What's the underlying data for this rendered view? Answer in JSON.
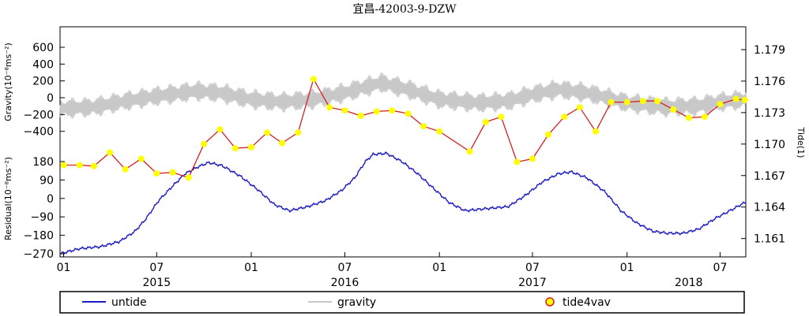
{
  "chart_data": {
    "type": "line",
    "title": "宜昌-42003-9-DZW",
    "x_range": [
      "2014-12-25",
      "2018-08-20"
    ],
    "x_tick_labels": [
      {
        "date": "2015-01-01",
        "label": "01"
      },
      {
        "date": "2015-07-01",
        "label": "07"
      },
      {
        "date": "2016-01-01",
        "label": "01"
      },
      {
        "date": "2016-07-01",
        "label": "07"
      },
      {
        "date": "2017-01-01",
        "label": "01"
      },
      {
        "date": "2017-07-01",
        "label": "07"
      },
      {
        "date": "2018-01-01",
        "label": "01"
      },
      {
        "date": "2018-07-01",
        "label": "07"
      }
    ],
    "year_labels": [
      {
        "date": "2015-07-01",
        "label": "2015"
      },
      {
        "date": "2016-07-01",
        "label": "2016"
      },
      {
        "date": "2017-07-01",
        "label": "2017"
      },
      {
        "date": "2018-05-01",
        "label": "2018"
      }
    ],
    "gravity_axis": {
      "label": "Gravity(10⁻⁸ms⁻²)",
      "ticks": [
        "600",
        "400",
        "200",
        "0",
        "−200",
        "−400"
      ],
      "tick_values": [
        600,
        400,
        200,
        0,
        -200,
        -400
      ],
      "ylim": [
        -450,
        750
      ]
    },
    "residual_axis": {
      "label": "Residual(10⁻⁸ms⁻²)",
      "ticks": [
        "180",
        "90",
        "0",
        "−90",
        "−180",
        "−270"
      ],
      "tick_values": [
        180,
        90,
        0,
        -90,
        -180,
        -270
      ],
      "ylim": [
        -270,
        230
      ]
    },
    "tide_axis": {
      "label": "Tide(1)",
      "ticks": [
        "1.179",
        "1.176",
        "1.173",
        "1.170",
        "1.167",
        "1.164",
        "1.161"
      ],
      "tick_values": [
        1.179,
        1.176,
        1.173,
        1.17,
        1.167,
        1.164,
        1.161
      ],
      "ylim": [
        1.1603,
        1.1802
      ]
    },
    "series": [
      {
        "name": "untide",
        "axis": "residual",
        "color": "#1c1cc4",
        "points": [
          [
            "2014-12-25",
            -270
          ],
          [
            "2015-02-01",
            -245
          ],
          [
            "2015-03-15",
            -235
          ],
          [
            "2015-04-20",
            -210
          ],
          [
            "2015-05-20",
            -160
          ],
          [
            "2015-06-10",
            -100
          ],
          [
            "2015-07-05",
            -10
          ],
          [
            "2015-08-01",
            60
          ],
          [
            "2015-08-25",
            120
          ],
          [
            "2015-09-20",
            155
          ],
          [
            "2015-10-10",
            175
          ],
          [
            "2015-11-05",
            160
          ],
          [
            "2015-12-10",
            110
          ],
          [
            "2016-01-15",
            40
          ],
          [
            "2016-02-15",
            -30
          ],
          [
            "2016-03-15",
            -60
          ],
          [
            "2016-04-20",
            -40
          ],
          [
            "2016-05-25",
            -10
          ],
          [
            "2016-06-25",
            40
          ],
          [
            "2016-07-20",
            100
          ],
          [
            "2016-08-10",
            180
          ],
          [
            "2016-08-25",
            215
          ],
          [
            "2016-09-20",
            220
          ],
          [
            "2016-10-20",
            180
          ],
          [
            "2016-11-20",
            120
          ],
          [
            "2016-12-20",
            50
          ],
          [
            "2017-01-20",
            -20
          ],
          [
            "2017-02-20",
            -60
          ],
          [
            "2017-04-01",
            -50
          ],
          [
            "2017-05-15",
            -40
          ],
          [
            "2017-06-20",
            20
          ],
          [
            "2017-07-20",
            80
          ],
          [
            "2017-08-20",
            120
          ],
          [
            "2017-09-15",
            130
          ],
          [
            "2017-10-15",
            100
          ],
          [
            "2017-11-20",
            30
          ],
          [
            "2017-12-20",
            -60
          ],
          [
            "2018-01-20",
            -120
          ],
          [
            "2018-02-20",
            -160
          ],
          [
            "2018-03-20",
            -170
          ],
          [
            "2018-04-20",
            -170
          ],
          [
            "2018-05-20",
            -150
          ],
          [
            "2018-06-20",
            -100
          ],
          [
            "2018-07-20",
            -60
          ],
          [
            "2018-08-18",
            -20
          ]
        ]
      },
      {
        "name": "gravity",
        "axis": "gravity",
        "color": "#c8c8c8",
        "period_days": 14.8,
        "amplitude": 130,
        "baseline": [
          [
            "2014-12-25",
            -130
          ],
          [
            "2015-03-01",
            -110
          ],
          [
            "2015-05-01",
            -40
          ],
          [
            "2015-07-01",
            20
          ],
          [
            "2015-09-15",
            80
          ],
          [
            "2015-11-01",
            60
          ],
          [
            "2016-01-01",
            -20
          ],
          [
            "2016-03-01",
            -50
          ],
          [
            "2016-05-01",
            -20
          ],
          [
            "2016-07-01",
            60
          ],
          [
            "2016-09-10",
            180
          ],
          [
            "2016-11-01",
            100
          ],
          [
            "2017-01-01",
            -20
          ],
          [
            "2017-03-15",
            -60
          ],
          [
            "2017-05-15",
            -40
          ],
          [
            "2017-07-01",
            40
          ],
          [
            "2017-08-20",
            100
          ],
          [
            "2017-10-15",
            60
          ],
          [
            "2018-01-01",
            -60
          ],
          [
            "2018-03-15",
            -110
          ],
          [
            "2018-05-15",
            -100
          ],
          [
            "2018-07-01",
            -50
          ],
          [
            "2018-08-20",
            -20
          ]
        ]
      },
      {
        "name": "tide4vav",
        "axis": "tide",
        "color": "#d42020",
        "marker_fill": "#ffff00",
        "points": [
          [
            "2015-01-01",
            1.168
          ],
          [
            "2015-02-01",
            1.168
          ],
          [
            "2015-03-01",
            1.1679
          ],
          [
            "2015-04-01",
            1.1692
          ],
          [
            "2015-05-01",
            1.1676
          ],
          [
            "2015-06-01",
            1.1686
          ],
          [
            "2015-07-01",
            1.1672
          ],
          [
            "2015-08-01",
            1.1673
          ],
          [
            "2015-09-01",
            1.1668
          ],
          [
            "2015-10-01",
            1.17
          ],
          [
            "2015-11-01",
            1.1714
          ],
          [
            "2015-12-01",
            1.1696
          ],
          [
            "2016-01-01",
            1.1697
          ],
          [
            "2016-02-01",
            1.1711
          ],
          [
            "2016-03-01",
            1.1701
          ],
          [
            "2016-04-01",
            1.1711
          ],
          [
            "2016-05-01",
            1.1762
          ],
          [
            "2016-06-01",
            1.1735
          ],
          [
            "2016-07-01",
            1.1732
          ],
          [
            "2016-08-01",
            1.1727
          ],
          [
            "2016-09-01",
            1.1731
          ],
          [
            "2016-10-01",
            1.1732
          ],
          [
            "2016-11-01",
            1.1729
          ],
          [
            "2016-12-01",
            1.1717
          ],
          [
            "2017-01-01",
            1.1712
          ],
          [
            "2017-03-01",
            1.1693
          ],
          [
            "2017-04-01",
            1.1721
          ],
          [
            "2017-05-01",
            1.1726
          ],
          [
            "2017-06-01",
            1.1683
          ],
          [
            "2017-07-01",
            1.1686
          ],
          [
            "2017-08-01",
            1.1709
          ],
          [
            "2017-09-01",
            1.1726
          ],
          [
            "2017-10-01",
            1.1735
          ],
          [
            "2017-11-01",
            1.1712
          ],
          [
            "2017-12-01",
            1.174
          ],
          [
            "2018-01-01",
            1.174
          ],
          [
            "2018-02-01",
            1.1741
          ],
          [
            "2018-03-01",
            1.1741
          ],
          [
            "2018-04-01",
            1.1733
          ],
          [
            "2018-05-01",
            1.1725
          ],
          [
            "2018-06-01",
            1.1726
          ],
          [
            "2018-07-01",
            1.1738
          ],
          [
            "2018-08-01",
            1.1743
          ],
          [
            "2018-08-18",
            1.1742
          ]
        ]
      }
    ],
    "legend": {
      "placement": "bottom",
      "entries": [
        {
          "label": "untide",
          "series": "untide"
        },
        {
          "label": "gravity",
          "series": "gravity"
        },
        {
          "label": "tide4vav",
          "series": "tide4vav"
        }
      ]
    },
    "grid": false
  }
}
